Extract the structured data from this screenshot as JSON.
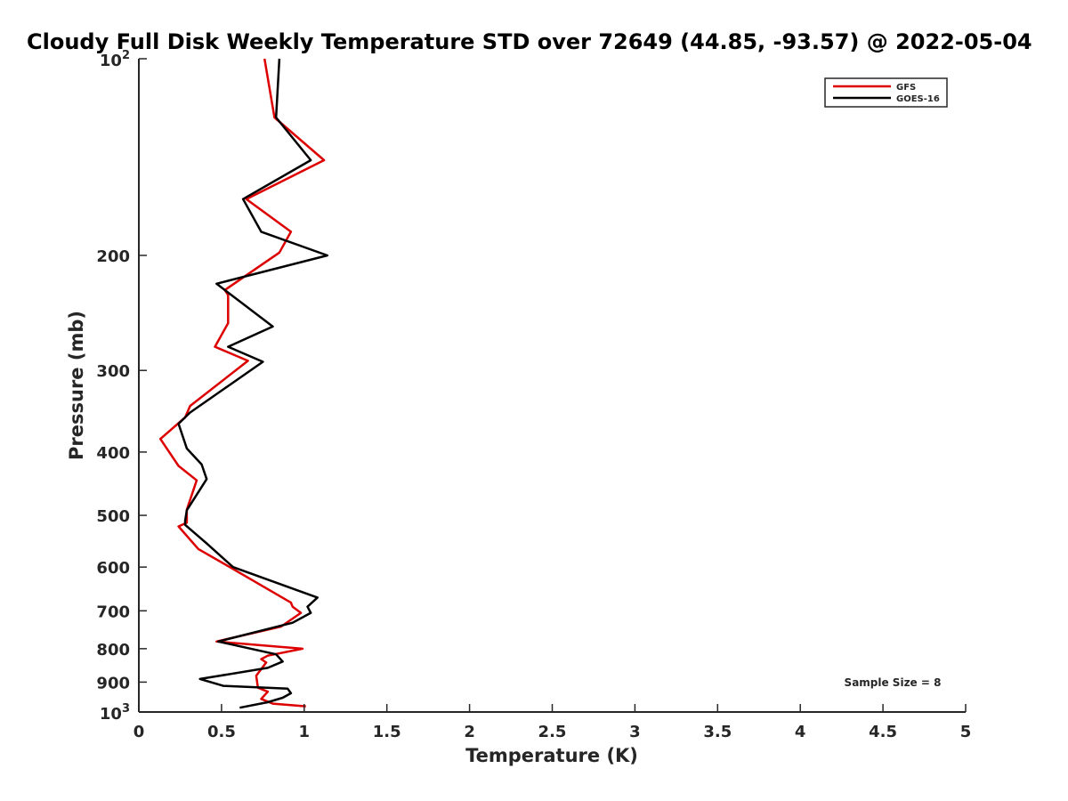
{
  "chart_data": {
    "type": "line",
    "title": "Cloudy Full Disk Weekly Temperature STD over 72649 (44.85, -93.57) @ 2022-05-04",
    "xlabel": "Temperature (K)",
    "ylabel": "Pressure (mb)",
    "xlim": [
      0,
      5
    ],
    "ylim": [
      100,
      1000
    ],
    "y_scale": "log",
    "y_reversed": true,
    "grid": false,
    "legend_position": "top-right",
    "x_ticks": [
      0,
      0.5,
      1,
      1.5,
      2,
      2.5,
      3,
      3.5,
      4,
      4.5,
      5
    ],
    "x_tick_labels": [
      "0",
      "0.5",
      "1",
      "1.5",
      "2",
      "2.5",
      "3",
      "3.5",
      "4",
      "4.5",
      "5"
    ],
    "y_ticks": [
      200,
      300,
      400,
      500,
      600,
      700,
      800,
      900
    ],
    "y_tick_labels": [
      "200",
      "300",
      "400",
      "500",
      "600",
      "700",
      "800",
      "900"
    ],
    "y_min_label": {
      "base": "10",
      "exp": "2"
    },
    "y_max_label": {
      "base": "10",
      "exp": "3"
    },
    "annotation": "Sample Size = 8",
    "series": [
      {
        "name": "GFS",
        "color": "#dd0000",
        "x": [
          0.76,
          0.82,
          1.12,
          0.65,
          0.92,
          0.85,
          0.52,
          0.54,
          0.54,
          0.46,
          0.66,
          0.31,
          0.28,
          0.13,
          0.24,
          0.35,
          0.29,
          0.29,
          0.24,
          0.36,
          0.55,
          0.92,
          0.93,
          0.98,
          0.86,
          0.47,
          0.99,
          0.78,
          0.74,
          0.77,
          0.71,
          0.72,
          0.78,
          0.74,
          0.81,
          1.01
        ],
        "y": [
          100,
          123,
          143,
          164,
          184,
          198,
          226,
          230,
          254,
          276,
          290,
          340,
          354,
          382,
          420,
          442,
          490,
          513,
          520,
          563,
          600,
          680,
          690,
          705,
          740,
          780,
          800,
          820,
          830,
          840,
          880,
          918,
          931,
          955,
          971,
          980
        ]
      },
      {
        "name": "GOES-16",
        "color": "#000000",
        "x": [
          0.85,
          0.83,
          1.04,
          0.63,
          0.74,
          1.14,
          0.47,
          0.81,
          0.54,
          0.75,
          0.31,
          0.24,
          0.29,
          0.38,
          0.41,
          0.29,
          0.28,
          0.28,
          0.41,
          0.57,
          1.08,
          1.02,
          1.04,
          0.93,
          0.48,
          0.83,
          0.87,
          0.78,
          0.37,
          0.51,
          0.9,
          0.92,
          0.87,
          0.78,
          0.61
        ],
        "y": [
          100,
          123,
          143,
          164,
          184,
          200,
          221,
          257,
          276,
          291,
          348,
          362,
          395,
          418,
          440,
          491,
          510,
          517,
          552,
          600,
          668,
          690,
          705,
          730,
          780,
          816,
          837,
          856,
          890,
          912,
          921,
          936,
          951,
          966,
          985
        ]
      }
    ]
  }
}
